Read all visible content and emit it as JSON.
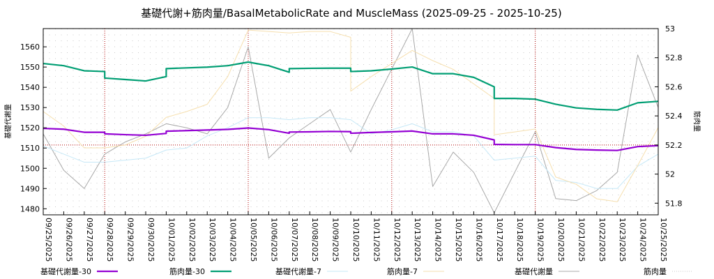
{
  "chart_data": {
    "type": "line",
    "title": "基礎代謝+筋肉量/BasalMetabolicRate and MuscleMass (2025-09-25 - 2025-10-25)",
    "ylabel_left": "基礎代謝量",
    "ylabel_right": "筋肉量",
    "ylim_left": [
      1477,
      1569
    ],
    "ylim_right": [
      51.72,
      53.0
    ],
    "yticks_left": [
      1480,
      1490,
      1500,
      1510,
      1520,
      1530,
      1540,
      1550,
      1560
    ],
    "yticks_right": [
      51.8,
      52.0,
      52.2,
      52.4,
      52.6,
      52.8,
      53.0
    ],
    "yticks_right_labels": [
      "51.8",
      "52",
      "52.2",
      "52.4",
      "52.6",
      "52.8",
      "53"
    ],
    "categories": [
      "09/25/2025",
      "09/26/2025",
      "09/27/2025",
      "09/28/2025",
      "09/29/2025",
      "09/30/2025",
      "10/01/2025",
      "10/02/2025",
      "10/03/2025",
      "10/04/2025",
      "10/05/2025",
      "10/06/2025",
      "10/07/2025",
      "10/08/2025",
      "10/09/2025",
      "10/10/2025",
      "10/11/2025",
      "10/12/2025",
      "10/13/2025",
      "10/14/2025",
      "10/15/2025",
      "10/16/2025",
      "10/17/2025",
      "10/18/2025",
      "10/19/2025",
      "10/20/2025",
      "10/21/2025",
      "10/22/2025",
      "10/23/2025",
      "10/24/2025",
      "10/25/2025"
    ],
    "ref_line_left": 1511.5,
    "vlines_at": [
      3,
      10,
      17,
      24
    ],
    "series": [
      {
        "name": "基礎代謝量-30",
        "axis": "left",
        "color": "#9400d3",
        "width": 2.2,
        "dash": "",
        "x": [
          0,
          1,
          2,
          3,
          3,
          4,
          5,
          6,
          6,
          7,
          8,
          9,
          10,
          11,
          12,
          12,
          13,
          14,
          15,
          15,
          16,
          17,
          18,
          19,
          20,
          21,
          22,
          22,
          23,
          24,
          25,
          26,
          27,
          28,
          29,
          30
        ],
        "values": [
          1519.7,
          1519.3,
          1517.8,
          1517.8,
          1517.0,
          1516.6,
          1516.3,
          1517.2,
          1518.3,
          1518.6,
          1518.9,
          1519.2,
          1519.9,
          1519.1,
          1517.3,
          1517.9,
          1518.0,
          1518.2,
          1518.1,
          1517.3,
          1517.7,
          1518.0,
          1518.4,
          1517.0,
          1517.0,
          1516.3,
          1514.0,
          1511.8,
          1511.7,
          1511.7,
          1510.2,
          1509.3,
          1509.0,
          1508.8,
          1510.7,
          1511.2
        ]
      },
      {
        "name": "筋肉量-30",
        "axis": "right",
        "color": "#009e73",
        "width": 2.2,
        "dash": "",
        "x": [
          0,
          1,
          2,
          3,
          3,
          4,
          5,
          6,
          6,
          7,
          8,
          9,
          10,
          11,
          12,
          12,
          13,
          14,
          15,
          15,
          16,
          17,
          18,
          19,
          20,
          21,
          22,
          22,
          23,
          24,
          25,
          26,
          27,
          28,
          29,
          30
        ],
        "values": [
          52.76,
          52.745,
          52.71,
          52.705,
          52.66,
          52.65,
          52.64,
          52.67,
          52.725,
          52.73,
          52.735,
          52.745,
          52.77,
          52.745,
          52.7,
          52.725,
          52.727,
          52.728,
          52.728,
          52.705,
          52.71,
          52.722,
          52.736,
          52.69,
          52.69,
          52.665,
          52.6,
          52.52,
          52.52,
          52.515,
          52.48,
          52.455,
          52.445,
          52.44,
          52.49,
          52.5
        ]
      },
      {
        "name": "基礎代謝量-7",
        "axis": "left",
        "color": "#c6e8f7",
        "width": 1,
        "dash": "",
        "x": [
          0,
          1,
          2,
          3,
          4,
          5,
          6,
          7,
          8,
          9,
          10,
          11,
          12,
          13,
          14,
          15,
          16,
          17,
          18,
          19,
          20,
          21,
          22,
          23,
          24,
          25,
          26,
          27,
          28,
          29,
          30
        ],
        "values": [
          1511,
          1507,
          1503,
          1503,
          1504,
          1505,
          1509,
          1510,
          1516,
          1520,
          1525,
          1525,
          1524,
          1525,
          1525,
          1524,
          1517,
          1519,
          1522,
          1518,
          1518,
          1516,
          1504,
          1505,
          1506,
          1494,
          1493,
          1490,
          1490,
          1501,
          1507
        ]
      },
      {
        "name": "筋肉量-7",
        "axis": "right",
        "color": "#f6dfae",
        "width": 1,
        "dash": "",
        "x": [
          0,
          1,
          2,
          3,
          4,
          5,
          6,
          7,
          8,
          9,
          10,
          11,
          12,
          13,
          14,
          15,
          15,
          16,
          17,
          18,
          19,
          20,
          21,
          22,
          22,
          23,
          24,
          25,
          26,
          27,
          28,
          29,
          30
        ],
        "values": [
          52.43,
          52.33,
          52.18,
          52.18,
          52.2,
          52.26,
          52.39,
          52.43,
          52.48,
          52.67,
          52.99,
          52.98,
          52.97,
          52.98,
          52.98,
          52.94,
          52.57,
          52.67,
          52.76,
          52.85,
          52.78,
          52.72,
          52.62,
          52.52,
          52.27,
          52.29,
          52.31,
          51.98,
          51.93,
          51.83,
          51.81,
          52.06,
          52.32
        ]
      },
      {
        "name": "基礎代謝量",
        "axis": "left",
        "color": "#a8a8a8",
        "width": 1,
        "dash": "",
        "x": [
          0,
          1,
          2,
          3,
          4,
          5,
          6,
          7,
          8,
          9,
          10,
          11,
          12,
          13,
          14,
          15,
          16,
          17,
          18,
          19,
          20,
          21,
          22,
          23,
          24,
          25,
          26,
          27,
          28,
          29,
          30
        ],
        "values": [
          1517,
          1499,
          1490,
          1507,
          1513,
          1517,
          1522,
          1520,
          1517,
          1530,
          1560,
          1505,
          1515,
          1522,
          1529,
          1508,
          1529,
          1549,
          1569,
          1491,
          1508,
          1498,
          1478,
          1498,
          1518,
          1485,
          1484,
          1489,
          1498,
          1556,
          1530
        ]
      },
      {
        "name": "筋肉量",
        "axis": "right",
        "color": "#c8c8c8",
        "width": 1,
        "dash": "1,2",
        "x": [],
        "values": []
      }
    ]
  }
}
